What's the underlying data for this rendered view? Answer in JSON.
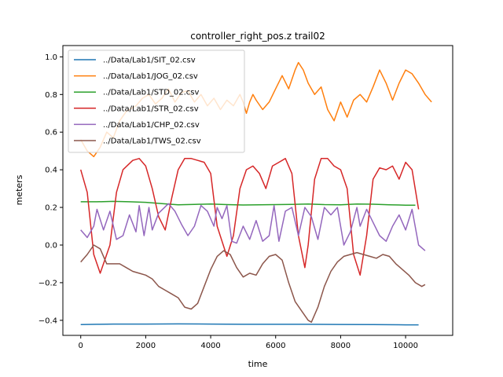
{
  "chart_data": {
    "type": "line",
    "title": "controller_right_pos.z trail02",
    "xlabel": "time",
    "ylabel": "meters",
    "xlim": [
      -550,
      11450
    ],
    "ylim": [
      -0.48,
      1.06
    ],
    "xticks": [
      0,
      2000,
      4000,
      6000,
      8000,
      10000
    ],
    "yticks": [
      -0.4,
      -0.2,
      0.0,
      0.2,
      0.4,
      0.6,
      0.8,
      1.0
    ],
    "ytick_labels": [
      "−0.4",
      "−0.2",
      "0.0",
      "0.2",
      "0.4",
      "0.6",
      "0.8",
      "1.0"
    ],
    "grid": false,
    "legend_position": "top-left",
    "series": [
      {
        "name": "../Data/Lab1/SIT_02.csv",
        "color": "#1f77b4",
        "points": [
          [
            0,
            -0.423
          ],
          [
            500,
            -0.421
          ],
          [
            1000,
            -0.42
          ],
          [
            2000,
            -0.42
          ],
          [
            3000,
            -0.419
          ],
          [
            4000,
            -0.42
          ],
          [
            5000,
            -0.421
          ],
          [
            6000,
            -0.421
          ],
          [
            7000,
            -0.421
          ],
          [
            8000,
            -0.422
          ],
          [
            9000,
            -0.423
          ],
          [
            10000,
            -0.424
          ],
          [
            10400,
            -0.424
          ]
        ]
      },
      {
        "name": "../Data/Lab1/JOG_02.csv",
        "color": "#ff7f0e",
        "points": [
          [
            0,
            0.56
          ],
          [
            200,
            0.5
          ],
          [
            400,
            0.47
          ],
          [
            600,
            0.52
          ],
          [
            800,
            0.6
          ],
          [
            1000,
            0.57
          ],
          [
            1200,
            0.66
          ],
          [
            1400,
            0.71
          ],
          [
            1700,
            0.74
          ],
          [
            1900,
            0.78
          ],
          [
            2100,
            0.8
          ],
          [
            2300,
            0.75
          ],
          [
            2500,
            0.78
          ],
          [
            2700,
            0.83
          ],
          [
            2900,
            0.76
          ],
          [
            3100,
            0.81
          ],
          [
            3300,
            0.82
          ],
          [
            3500,
            0.76
          ],
          [
            3700,
            0.8
          ],
          [
            3900,
            0.74
          ],
          [
            4100,
            0.78
          ],
          [
            4300,
            0.72
          ],
          [
            4500,
            0.77
          ],
          [
            4700,
            0.74
          ],
          [
            4900,
            0.8
          ],
          [
            5000,
            0.76
          ],
          [
            5100,
            0.7
          ],
          [
            5200,
            0.76
          ],
          [
            5300,
            0.8
          ],
          [
            5400,
            0.77
          ],
          [
            5600,
            0.72
          ],
          [
            5800,
            0.76
          ],
          [
            6000,
            0.83
          ],
          [
            6200,
            0.9
          ],
          [
            6400,
            0.83
          ],
          [
            6600,
            0.93
          ],
          [
            6700,
            0.97
          ],
          [
            6850,
            0.93
          ],
          [
            7000,
            0.86
          ],
          [
            7200,
            0.8
          ],
          [
            7400,
            0.84
          ],
          [
            7600,
            0.72
          ],
          [
            7800,
            0.66
          ],
          [
            8000,
            0.76
          ],
          [
            8200,
            0.68
          ],
          [
            8400,
            0.77
          ],
          [
            8600,
            0.8
          ],
          [
            8800,
            0.76
          ],
          [
            9000,
            0.84
          ],
          [
            9200,
            0.93
          ],
          [
            9400,
            0.86
          ],
          [
            9600,
            0.77
          ],
          [
            9800,
            0.86
          ],
          [
            10000,
            0.93
          ],
          [
            10200,
            0.91
          ],
          [
            10400,
            0.86
          ],
          [
            10600,
            0.8
          ],
          [
            10800,
            0.76
          ]
        ]
      },
      {
        "name": "../Data/Lab1/STD_02.csv",
        "color": "#2ca02c",
        "points": [
          [
            0,
            0.23
          ],
          [
            500,
            0.23
          ],
          [
            1000,
            0.232
          ],
          [
            1500,
            0.23
          ],
          [
            2000,
            0.227
          ],
          [
            2500,
            0.22
          ],
          [
            3000,
            0.214
          ],
          [
            3500,
            0.216
          ],
          [
            4000,
            0.218
          ],
          [
            4500,
            0.215
          ],
          [
            5000,
            0.213
          ],
          [
            5500,
            0.214
          ],
          [
            6000,
            0.215
          ],
          [
            6500,
            0.216
          ],
          [
            7000,
            0.218
          ],
          [
            7500,
            0.215
          ],
          [
            8000,
            0.214
          ],
          [
            8500,
            0.218
          ],
          [
            9000,
            0.217
          ],
          [
            9500,
            0.214
          ],
          [
            10000,
            0.212
          ],
          [
            10300,
            0.212
          ]
        ]
      },
      {
        "name": "../Data/Lab1/STR_02.csv",
        "color": "#d62728",
        "points": [
          [
            0,
            0.4
          ],
          [
            200,
            0.28
          ],
          [
            400,
            -0.05
          ],
          [
            600,
            -0.15
          ],
          [
            900,
            0.0
          ],
          [
            1100,
            0.28
          ],
          [
            1300,
            0.4
          ],
          [
            1600,
            0.45
          ],
          [
            1800,
            0.46
          ],
          [
            2000,
            0.42
          ],
          [
            2200,
            0.3
          ],
          [
            2400,
            0.15
          ],
          [
            2600,
            0.08
          ],
          [
            2800,
            0.25
          ],
          [
            3000,
            0.4
          ],
          [
            3200,
            0.46
          ],
          [
            3400,
            0.46
          ],
          [
            3600,
            0.45
          ],
          [
            3800,
            0.44
          ],
          [
            4000,
            0.38
          ],
          [
            4200,
            0.1
          ],
          [
            4500,
            -0.06
          ],
          [
            4700,
            0.05
          ],
          [
            4900,
            0.3
          ],
          [
            5100,
            0.4
          ],
          [
            5300,
            0.42
          ],
          [
            5500,
            0.38
          ],
          [
            5700,
            0.3
          ],
          [
            5900,
            0.42
          ],
          [
            6100,
            0.44
          ],
          [
            6300,
            0.46
          ],
          [
            6500,
            0.38
          ],
          [
            6700,
            0.05
          ],
          [
            6900,
            -0.12
          ],
          [
            7000,
            0.0
          ],
          [
            7200,
            0.35
          ],
          [
            7400,
            0.46
          ],
          [
            7600,
            0.46
          ],
          [
            7800,
            0.42
          ],
          [
            8000,
            0.4
          ],
          [
            8200,
            0.3
          ],
          [
            8400,
            -0.05
          ],
          [
            8600,
            -0.16
          ],
          [
            8800,
            0.05
          ],
          [
            9000,
            0.35
          ],
          [
            9200,
            0.41
          ],
          [
            9400,
            0.4
          ],
          [
            9600,
            0.42
          ],
          [
            9800,
            0.35
          ],
          [
            10000,
            0.44
          ],
          [
            10200,
            0.4
          ],
          [
            10400,
            0.19
          ]
        ]
      },
      {
        "name": "../Data/Lab1/CHP_02.csv",
        "color": "#9467bd",
        "points": [
          [
            0,
            0.08
          ],
          [
            200,
            0.04
          ],
          [
            400,
            0.1
          ],
          [
            500,
            0.19
          ],
          [
            700,
            0.08
          ],
          [
            900,
            0.18
          ],
          [
            1100,
            0.03
          ],
          [
            1300,
            0.05
          ],
          [
            1500,
            0.16
          ],
          [
            1700,
            0.07
          ],
          [
            1800,
            0.21
          ],
          [
            1950,
            0.05
          ],
          [
            2100,
            0.2
          ],
          [
            2200,
            0.08
          ],
          [
            2400,
            0.17
          ],
          [
            2700,
            0.22
          ],
          [
            2900,
            0.18
          ],
          [
            3100,
            0.11
          ],
          [
            3300,
            0.05
          ],
          [
            3500,
            0.1
          ],
          [
            3700,
            0.21
          ],
          [
            3900,
            0.18
          ],
          [
            4100,
            0.1
          ],
          [
            4200,
            0.2
          ],
          [
            4350,
            0.14
          ],
          [
            4500,
            0.21
          ],
          [
            4650,
            0.02
          ],
          [
            4800,
            0.01
          ],
          [
            5000,
            0.1
          ],
          [
            5200,
            0.03
          ],
          [
            5400,
            0.13
          ],
          [
            5600,
            0.02
          ],
          [
            5800,
            0.05
          ],
          [
            5950,
            0.21
          ],
          [
            6100,
            0.02
          ],
          [
            6300,
            0.18
          ],
          [
            6500,
            0.2
          ],
          [
            6700,
            0.05
          ],
          [
            6900,
            0.2
          ],
          [
            7100,
            0.15
          ],
          [
            7300,
            0.03
          ],
          [
            7500,
            0.2
          ],
          [
            7700,
            0.16
          ],
          [
            7900,
            0.2
          ],
          [
            8100,
            0.0
          ],
          [
            8300,
            0.07
          ],
          [
            8500,
            0.2
          ],
          [
            8600,
            0.1
          ],
          [
            8800,
            0.19
          ],
          [
            9000,
            0.12
          ],
          [
            9200,
            0.05
          ],
          [
            9400,
            0.02
          ],
          [
            9600,
            0.1
          ],
          [
            9800,
            0.16
          ],
          [
            10000,
            0.08
          ],
          [
            10200,
            0.19
          ],
          [
            10400,
            0.0
          ],
          [
            10600,
            -0.03
          ]
        ]
      },
      {
        "name": "../Data/Lab1/TWS_02.csv",
        "color": "#8c564b",
        "points": [
          [
            0,
            -0.09
          ],
          [
            200,
            -0.05
          ],
          [
            400,
            0.0
          ],
          [
            600,
            -0.02
          ],
          [
            800,
            -0.1
          ],
          [
            1000,
            -0.1
          ],
          [
            1200,
            -0.1
          ],
          [
            1400,
            -0.12
          ],
          [
            1600,
            -0.14
          ],
          [
            1800,
            -0.15
          ],
          [
            2000,
            -0.16
          ],
          [
            2200,
            -0.18
          ],
          [
            2400,
            -0.22
          ],
          [
            2600,
            -0.24
          ],
          [
            2800,
            -0.26
          ],
          [
            3000,
            -0.28
          ],
          [
            3200,
            -0.33
          ],
          [
            3400,
            -0.34
          ],
          [
            3600,
            -0.31
          ],
          [
            3800,
            -0.22
          ],
          [
            4000,
            -0.13
          ],
          [
            4200,
            -0.06
          ],
          [
            4400,
            -0.03
          ],
          [
            4600,
            -0.05
          ],
          [
            4800,
            -0.12
          ],
          [
            5000,
            -0.17
          ],
          [
            5200,
            -0.15
          ],
          [
            5400,
            -0.16
          ],
          [
            5600,
            -0.1
          ],
          [
            5800,
            -0.06
          ],
          [
            6000,
            -0.05
          ],
          [
            6200,
            -0.08
          ],
          [
            6400,
            -0.2
          ],
          [
            6600,
            -0.3
          ],
          [
            6800,
            -0.35
          ],
          [
            7000,
            -0.4
          ],
          [
            7100,
            -0.41
          ],
          [
            7300,
            -0.33
          ],
          [
            7500,
            -0.22
          ],
          [
            7700,
            -0.14
          ],
          [
            7900,
            -0.09
          ],
          [
            8100,
            -0.06
          ],
          [
            8300,
            -0.05
          ],
          [
            8500,
            -0.04
          ],
          [
            8700,
            -0.05
          ],
          [
            8900,
            -0.06
          ],
          [
            9100,
            -0.07
          ],
          [
            9300,
            -0.05
          ],
          [
            9500,
            -0.06
          ],
          [
            9700,
            -0.1
          ],
          [
            9900,
            -0.13
          ],
          [
            10100,
            -0.16
          ],
          [
            10300,
            -0.2
          ],
          [
            10500,
            -0.22
          ],
          [
            10600,
            -0.21
          ]
        ]
      }
    ]
  }
}
